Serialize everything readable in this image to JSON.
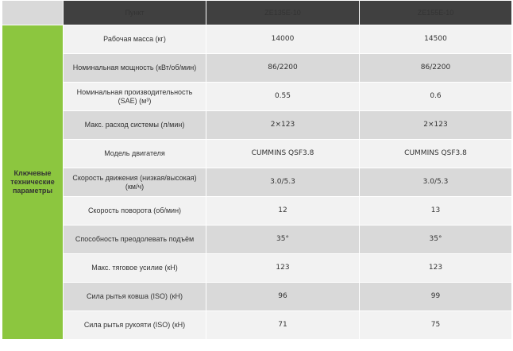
{
  "header": {
    "item": "Пункт",
    "model1": "ZE135E-10",
    "model2": "ZE155E-10"
  },
  "group_label": "Ключевые технические параметры",
  "rows": [
    {
      "param": "Рабочая масса (кг)",
      "v1": "14000",
      "v2": "14500"
    },
    {
      "param": "Номинальная мощность (кВт/об/мин)",
      "v1": "86/2200",
      "v2": "86/2200"
    },
    {
      "param": "Номинальная производительность (SAE) (м³)",
      "v1": "0.55",
      "v2": "0.6"
    },
    {
      "param": "Макс. расход системы (л/мин)",
      "v1": "2×123",
      "v2": "2×123"
    },
    {
      "param": "Модель двигателя",
      "v1": "CUMMINS QSF3.8",
      "v2": "CUMMINS QSF3.8"
    },
    {
      "param": "Скорость движения (низкая/высокая)(км/ч)",
      "v1": "3.0/5.3",
      "v2": "3.0/5.3"
    },
    {
      "param": "Скорость поворота (об/мин)",
      "v1": "12",
      "v2": "13"
    },
    {
      "param": "Способность преодолевать подъём",
      "v1": "35°",
      "v2": "35°"
    },
    {
      "param": "Макс. тяговое усилие (кН)",
      "v1": "123",
      "v2": "123"
    },
    {
      "param": "Сила рытья ковша (ISO) (кН)",
      "v1": "96",
      "v2": "99"
    },
    {
      "param": "Сила рытья рукояти (ISO) (кН)",
      "v1": "71",
      "v2": "75"
    }
  ]
}
